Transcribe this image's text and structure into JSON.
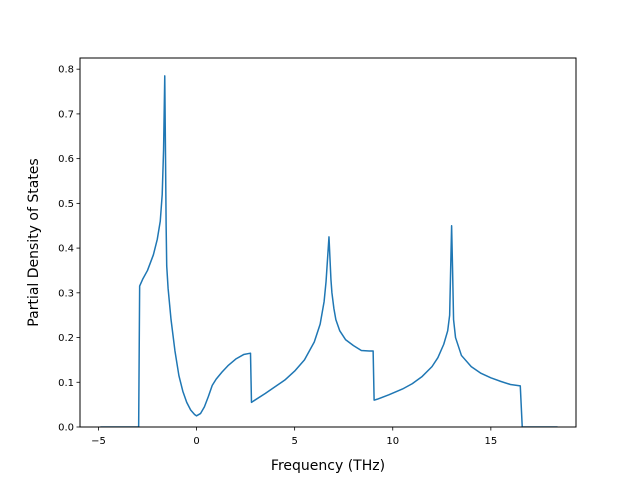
{
  "chart_data": {
    "type": "line",
    "title": "",
    "xlabel": "Frequency (THz)",
    "ylabel": "Partial Density of States",
    "xlim": [
      -5.94,
      19.34
    ],
    "ylim": [
      0.0,
      0.825
    ],
    "xticks": [
      -5,
      0,
      5,
      10,
      15
    ],
    "yticks": [
      0.0,
      0.1,
      0.2,
      0.3,
      0.4,
      0.5,
      0.6,
      0.7,
      0.8
    ],
    "grid": false,
    "legend": "none",
    "colors": {
      "line": "#1f77b4",
      "axes": "#000000",
      "background": "#ffffff"
    },
    "series": [
      {
        "x": [
          -4.9,
          -4.0,
          -3.2,
          -2.95,
          -2.9,
          -2.75,
          -2.5,
          -2.2,
          -2.0,
          -1.85,
          -1.75,
          -1.68,
          -1.62,
          -1.58,
          -1.55,
          -1.52,
          -1.45,
          -1.3,
          -1.1,
          -0.9,
          -0.7,
          -0.5,
          -0.3,
          -0.1,
          0.0,
          0.2,
          0.4,
          0.6,
          0.8,
          1.0,
          1.3,
          1.6,
          2.0,
          2.4,
          2.75,
          2.8,
          2.9,
          3.5,
          4.0,
          4.5,
          5.0,
          5.5,
          6.0,
          6.3,
          6.5,
          6.6,
          6.75,
          6.85,
          6.9,
          7.0,
          7.1,
          7.3,
          7.6,
          8.0,
          8.4,
          8.8,
          9.0,
          9.05,
          9.2,
          9.8,
          10.5,
          11.0,
          11.5,
          12.0,
          12.3,
          12.6,
          12.8,
          12.9,
          12.95,
          13.0,
          13.05,
          13.1,
          13.2,
          13.5,
          14.0,
          14.5,
          15.0,
          15.5,
          16.0,
          16.5,
          16.6,
          17.0,
          18.0,
          18.4
        ],
        "y": [
          0.0,
          0.0,
          0.0,
          0.0,
          0.315,
          0.33,
          0.35,
          0.385,
          0.42,
          0.46,
          0.52,
          0.62,
          0.785,
          0.6,
          0.45,
          0.36,
          0.31,
          0.24,
          0.17,
          0.115,
          0.08,
          0.055,
          0.038,
          0.028,
          0.025,
          0.03,
          0.045,
          0.068,
          0.093,
          0.107,
          0.123,
          0.137,
          0.152,
          0.162,
          0.165,
          0.055,
          0.058,
          0.075,
          0.09,
          0.105,
          0.125,
          0.15,
          0.19,
          0.23,
          0.28,
          0.325,
          0.425,
          0.33,
          0.3,
          0.265,
          0.24,
          0.215,
          0.195,
          0.182,
          0.171,
          0.17,
          0.17,
          0.06,
          0.062,
          0.072,
          0.085,
          0.097,
          0.113,
          0.135,
          0.155,
          0.185,
          0.215,
          0.25,
          0.35,
          0.45,
          0.35,
          0.24,
          0.2,
          0.16,
          0.135,
          0.12,
          0.11,
          0.102,
          0.095,
          0.092,
          0.0,
          0.0,
          0.0,
          0.0
        ]
      }
    ]
  }
}
